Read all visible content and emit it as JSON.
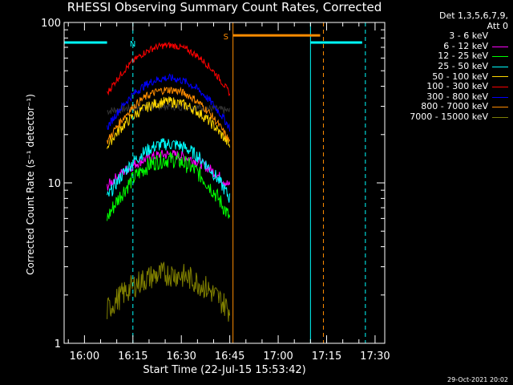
{
  "chart_data": {
    "type": "line",
    "title": "RHESSI Observing Summary Count Rates, Corrected",
    "ylabel": "Corrected Count Rate (s⁻¹ detector⁻¹)",
    "xlabel": "Start Time (22-Jul-15 15:53:42)",
    "yscale": "log",
    "ylim": [
      1,
      100
    ],
    "xlim": [
      "15:53:42",
      "17:33:00"
    ],
    "x_ticks": [
      "16:00",
      "16:15",
      "16:30",
      "16:45",
      "17:00",
      "17:15",
      "17:30"
    ],
    "y_ticks": [
      "1",
      "10",
      "100"
    ],
    "legend_header": [
      "Det 1,3,5,6,7,9,",
      "Att 0"
    ],
    "legend_position": "top-right",
    "footer_date": "29-Oct-2021 20:02",
    "data_window": {
      "start": "16:07",
      "end": "16:45"
    },
    "series": [
      {
        "name": "3 - 6 keV",
        "color": "#000000",
        "edge": 28,
        "peak": 30,
        "jitter": 1.06
      },
      {
        "name": "6 - 12 keV",
        "color": "#ff00ff",
        "edge": 9.5,
        "peak": 15,
        "jitter": 1.08
      },
      {
        "name": "12 - 25 keV",
        "color": "#00ff00",
        "edge": 6.0,
        "peak": 14,
        "jitter": 1.13
      },
      {
        "name": "25 - 50 keV",
        "color": "#00ffff",
        "edge": 8.0,
        "peak": 17.5,
        "jitter": 1.1
      },
      {
        "name": "50 - 100 keV",
        "color": "#ffd700",
        "edge": 17,
        "peak": 32,
        "jitter": 1.08
      },
      {
        "name": "100 - 300 keV",
        "color": "#ff0000",
        "edge": 36,
        "peak": 72,
        "jitter": 1.05
      },
      {
        "name": "300 - 800 keV",
        "color": "#0000ff",
        "edge": 22,
        "peak": 45,
        "jitter": 1.06
      },
      {
        "name": "800 - 7000 keV",
        "color": "#ff8c00",
        "edge": 18,
        "peak": 38,
        "jitter": 1.06
      },
      {
        "name": "7000 - 15000 keV",
        "color": "#808000",
        "edge": 1.6,
        "peak": 2.7,
        "jitter": 1.2
      }
    ],
    "markers": [
      {
        "kind": "bar",
        "label": "",
        "color": "#00ffff",
        "y": 75,
        "start": "15:53:42",
        "end": "16:07"
      },
      {
        "kind": "bar",
        "label": "",
        "color": "#00ffff",
        "y": 75,
        "start": "17:10",
        "end": "17:26"
      },
      {
        "kind": "bar",
        "label": "",
        "color": "#ff8c00",
        "y": 83,
        "start": "16:46",
        "end": "17:13"
      },
      {
        "kind": "text",
        "label": "N",
        "color": "#00ffff",
        "y": 75,
        "at": "16:16"
      },
      {
        "kind": "text",
        "label": "S",
        "color": "#ff8c00",
        "y": 83,
        "at": "16:45"
      }
    ],
    "vlines": [
      {
        "at": "15:53:42",
        "color": "#00ffff",
        "style": "solid"
      },
      {
        "at": "16:15",
        "color": "#00ffff",
        "style": "dashed"
      },
      {
        "at": "16:46",
        "color": "#ff8c00",
        "style": "solid"
      },
      {
        "at": "17:10",
        "color": "#00ffff",
        "style": "solid"
      },
      {
        "at": "17:14",
        "color": "#ff8c00",
        "style": "dashed"
      },
      {
        "at": "17:27",
        "color": "#00ffff",
        "style": "dashed"
      }
    ]
  }
}
